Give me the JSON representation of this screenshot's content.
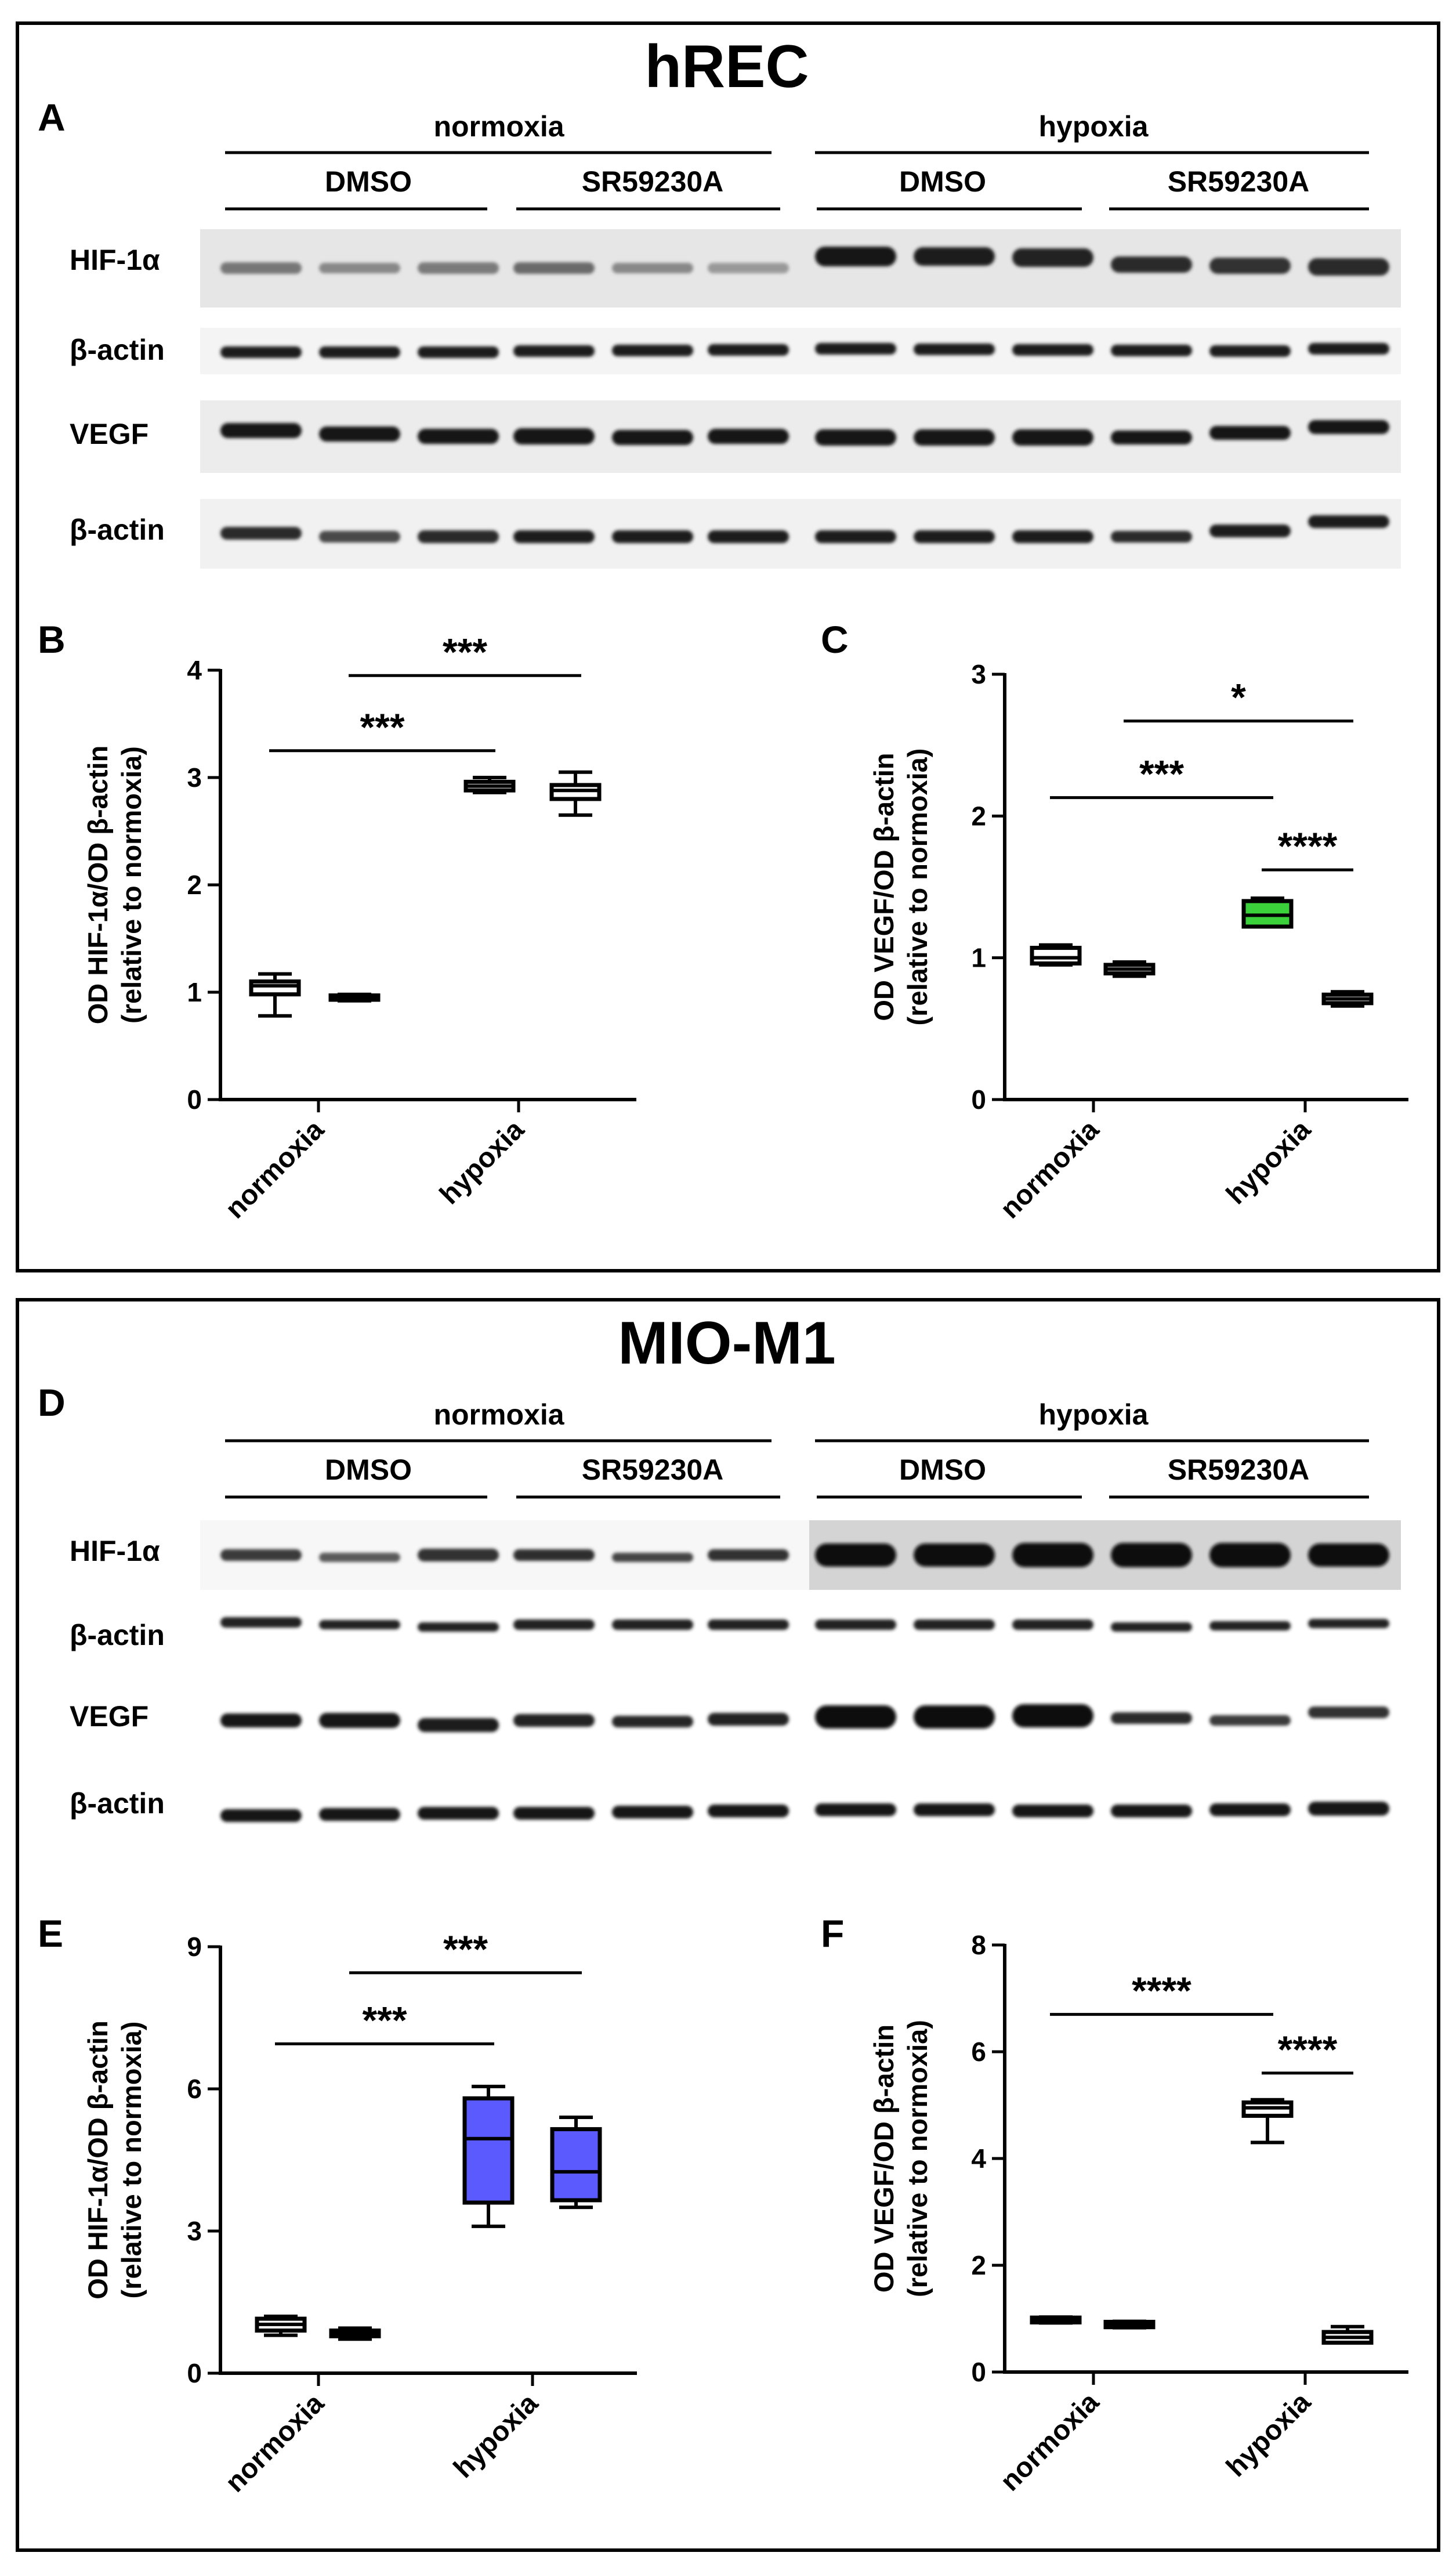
{
  "colors": {
    "hypoxia_dmso_hrec_vegf": "#3ad13a",
    "hypoxia_mio_hif": "#5a5aff",
    "frame": "#000000"
  },
  "top": {
    "title": "hREC",
    "letter": "A",
    "conditions": {
      "normoxia": "normoxia",
      "hypoxia": "hypoxia"
    },
    "treatments": [
      "DMSO",
      "SR59230A",
      "DMSO",
      "SR59230A"
    ],
    "blot_labels": [
      "HIF-1α",
      "β-actin",
      "VEGF",
      "β-actin"
    ]
  },
  "bottom": {
    "title": "MIO-M1",
    "letter": "D",
    "conditions": {
      "normoxia": "normoxia",
      "hypoxia": "hypoxia"
    },
    "treatments": [
      "DMSO",
      "SR59230A",
      "DMSO",
      "SR59230A"
    ],
    "blot_labels": [
      "HIF-1α",
      "β-actin",
      "VEGF",
      "β-actin"
    ]
  },
  "chart_data": [
    {
      "panel": "B",
      "type": "box",
      "ylabel": [
        "OD HIF-1α/OD β-actin",
        "(relative to normoxia)"
      ],
      "ylim": [
        0,
        4
      ],
      "yticks": [
        "0",
        "1",
        "2",
        "3",
        "4"
      ],
      "categories": [
        "normoxia",
        "hypoxia"
      ],
      "series": [
        {
          "condition": "normoxia",
          "treatment": "DMSO",
          "min": 0.78,
          "q1": 0.98,
          "median": 1.06,
          "q3": 1.1,
          "max": 1.17,
          "fill": "#ffffff"
        },
        {
          "condition": "normoxia",
          "treatment": "SR59230A",
          "min": 0.92,
          "q1": 0.93,
          "median": 0.95,
          "q3": 0.97,
          "max": 0.98,
          "fill": "#ffffff"
        },
        {
          "condition": "hypoxia",
          "treatment": "DMSO",
          "min": 2.86,
          "q1": 2.88,
          "median": 2.92,
          "q3": 2.96,
          "max": 3.0,
          "fill": "#ffffff"
        },
        {
          "condition": "hypoxia",
          "treatment": "SR59230A",
          "min": 2.65,
          "q1": 2.8,
          "median": 2.88,
          "q3": 2.93,
          "max": 3.05,
          "fill": "#ffffff"
        }
      ],
      "significance": [
        {
          "from": 0,
          "to": 2,
          "label": "***",
          "y": 3.25
        },
        {
          "from": 1,
          "to": 3,
          "label": "***",
          "y": 3.95
        }
      ]
    },
    {
      "panel": "C",
      "type": "box",
      "ylabel": [
        "OD VEGF/OD β-actin",
        "(relative to normoxia)"
      ],
      "ylim": [
        0,
        3
      ],
      "yticks": [
        "0",
        "1",
        "2",
        "3"
      ],
      "categories": [
        "normoxia",
        "hypoxia"
      ],
      "series": [
        {
          "condition": "normoxia",
          "treatment": "DMSO",
          "min": 0.95,
          "q1": 0.96,
          "median": 1.0,
          "q3": 1.07,
          "max": 1.09,
          "fill": "#ffffff"
        },
        {
          "condition": "normoxia",
          "treatment": "SR59230A",
          "min": 0.87,
          "q1": 0.89,
          "median": 0.92,
          "q3": 0.95,
          "max": 0.97,
          "fill": "#ffffff"
        },
        {
          "condition": "hypoxia",
          "treatment": "DMSO",
          "min": 1.22,
          "q1": 1.22,
          "median": 1.3,
          "q3": 1.4,
          "max": 1.42,
          "fill": "#3ad13a"
        },
        {
          "condition": "hypoxia",
          "treatment": "SR59230A",
          "min": 0.66,
          "q1": 0.68,
          "median": 0.71,
          "q3": 0.74,
          "max": 0.76,
          "fill": "#ffffff"
        }
      ],
      "significance": [
        {
          "from": 0,
          "to": 2,
          "label": "***",
          "y": 2.13
        },
        {
          "from": 1,
          "to": 3,
          "label": "*",
          "y": 2.67
        },
        {
          "from": 2,
          "to": 3,
          "label": "****",
          "y": 1.62
        }
      ]
    },
    {
      "panel": "E",
      "type": "box",
      "ylabel": [
        "OD HIF-1α/OD β-actin",
        "(relative to normoxia)"
      ],
      "ylim": [
        0,
        9
      ],
      "yticks": [
        "0",
        "3",
        "6",
        "9"
      ],
      "categories": [
        "normoxia",
        "hypoxia"
      ],
      "series": [
        {
          "condition": "normoxia",
          "treatment": "DMSO",
          "min": 0.8,
          "q1": 0.9,
          "median": 1.03,
          "q3": 1.15,
          "max": 1.2,
          "fill": "#ffffff"
        },
        {
          "condition": "normoxia",
          "treatment": "SR59230A",
          "min": 0.72,
          "q1": 0.78,
          "median": 0.84,
          "q3": 0.9,
          "max": 0.95,
          "fill": "#ffffff"
        },
        {
          "condition": "hypoxia",
          "treatment": "DMSO",
          "min": 3.1,
          "q1": 3.6,
          "median": 4.95,
          "q3": 5.8,
          "max": 6.05,
          "fill": "#5a5aff"
        },
        {
          "condition": "hypoxia",
          "treatment": "SR59230A",
          "min": 3.5,
          "q1": 3.65,
          "median": 4.25,
          "q3": 5.15,
          "max": 5.4,
          "fill": "#5a5aff"
        }
      ],
      "significance": [
        {
          "from": 0,
          "to": 2,
          "label": "***",
          "y": 6.95
        },
        {
          "from": 1,
          "to": 3,
          "label": "***",
          "y": 8.45
        }
      ]
    },
    {
      "panel": "F",
      "type": "box",
      "ylabel": [
        "OD VEGF/OD β-actin",
        "(relative to normoxia)"
      ],
      "ylim": [
        0,
        8
      ],
      "yticks": [
        "0",
        "2",
        "4",
        "6",
        "8"
      ],
      "categories": [
        "normoxia",
        "hypoxia"
      ],
      "series": [
        {
          "condition": "normoxia",
          "treatment": "DMSO",
          "min": 0.92,
          "q1": 0.93,
          "median": 0.98,
          "q3": 1.02,
          "max": 1.03,
          "fill": "#ffffff"
        },
        {
          "condition": "normoxia",
          "treatment": "SR59230A",
          "min": 0.83,
          "q1": 0.84,
          "median": 0.88,
          "q3": 0.94,
          "max": 0.95,
          "fill": "#ffffff"
        },
        {
          "condition": "hypoxia",
          "treatment": "DMSO",
          "min": 4.3,
          "q1": 4.8,
          "median": 4.95,
          "q3": 5.05,
          "max": 5.1,
          "fill": "#ffffff"
        },
        {
          "condition": "hypoxia",
          "treatment": "SR59230A",
          "min": 0.55,
          "q1": 0.55,
          "median": 0.65,
          "q3": 0.75,
          "max": 0.85,
          "fill": "#ffffff"
        }
      ],
      "significance": [
        {
          "from": 0,
          "to": 2,
          "label": "****",
          "y": 6.7
        },
        {
          "from": 2,
          "to": 3,
          "label": "****",
          "y": 5.6
        }
      ]
    }
  ]
}
